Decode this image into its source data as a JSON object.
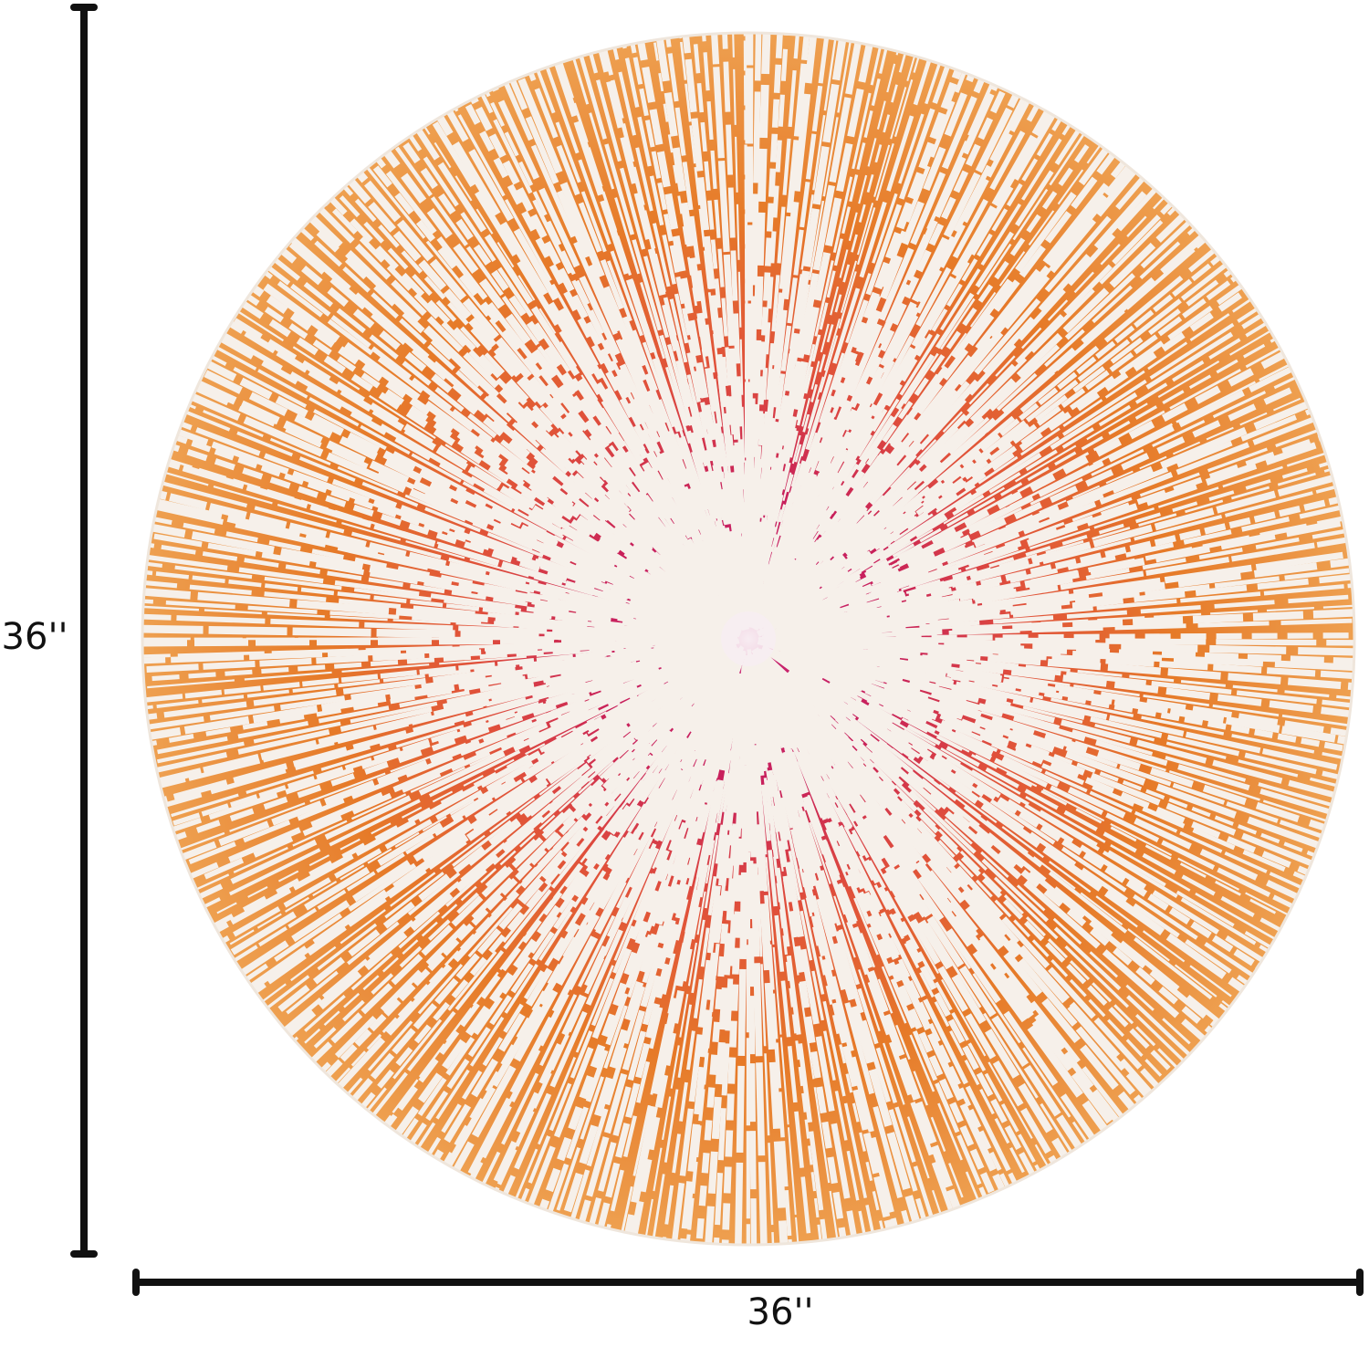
{
  "dimensions": {
    "height_label": "36''",
    "width_label": "36''"
  }
}
